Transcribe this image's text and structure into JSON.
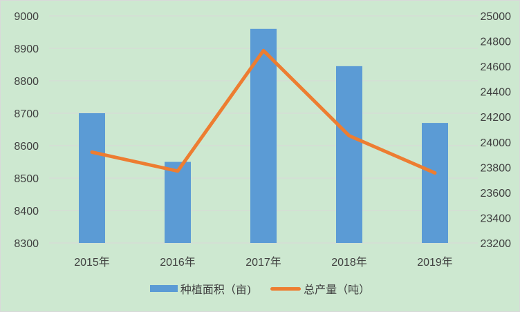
{
  "chart_data": {
    "type": "bar+line",
    "title": "",
    "categories": [
      "2015年",
      "2016年",
      "2017年",
      "2018年",
      "2019年"
    ],
    "series": [
      {
        "name": "种植面积（亩)",
        "type": "bar",
        "axis": "left",
        "color": "#5b9bd5",
        "values": [
          8700,
          8550,
          8960,
          8845,
          8670
        ]
      },
      {
        "name": "总产量（吨）",
        "type": "line",
        "axis": "right",
        "color": "#ed7d31",
        "values": [
          23920,
          23770,
          24725,
          24050,
          23755
        ]
      }
    ],
    "left_axis": {
      "min": 8300,
      "max": 9000,
      "step": 100,
      "ticks": [
        "9000",
        "8900",
        "8800",
        "8700",
        "8600",
        "8500",
        "8400",
        "8300"
      ]
    },
    "right_axis": {
      "min": 23200,
      "max": 25000,
      "step": 200,
      "ticks": [
        "25000",
        "24800",
        "24600",
        "24400",
        "24200",
        "24000",
        "23800",
        "23600",
        "23400",
        "23200"
      ]
    },
    "grid": true,
    "legend_position": "bottom",
    "background": "#cde8d0"
  },
  "legend": {
    "bar_label": "种植面积（亩)",
    "line_label": "总产量（吨）"
  }
}
